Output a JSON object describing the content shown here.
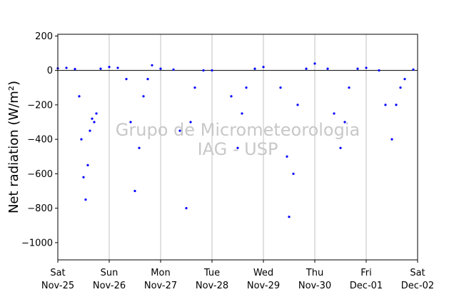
{
  "chart_data": {
    "type": "scatter",
    "ylabel": "Net radiation (W/m²)",
    "watermark": [
      "Grupo de Micrometeorologia",
      "IAG - USP"
    ],
    "ylim": [
      -1100,
      210
    ],
    "yticks": [
      200,
      0,
      -200,
      -400,
      -600,
      -800,
      -1000
    ],
    "xlim": [
      "2023-11-25",
      "2023-12-02"
    ],
    "xticks": [
      {
        "date": "2023-11-25",
        "day": "Sat",
        "label": "Nov-25"
      },
      {
        "date": "2023-11-26",
        "day": "Sun",
        "label": "Nov-26"
      },
      {
        "date": "2023-11-27",
        "day": "Mon",
        "label": "Nov-27"
      },
      {
        "date": "2023-11-28",
        "day": "Tue",
        "label": "Nov-28"
      },
      {
        "date": "2023-11-29",
        "day": "Wed",
        "label": "Nov-29"
      },
      {
        "date": "2023-11-30",
        "day": "Thu",
        "label": "Nov-30"
      },
      {
        "date": "2023-12-01",
        "day": "Fri",
        "label": "Dec-01"
      },
      {
        "date": "2023-12-02",
        "day": "Sat",
        "label": "Dec-02"
      }
    ],
    "grid": "vertical",
    "zero_line": true,
    "series_color": "#0000ff",
    "series": [
      {
        "points": [
          [
            "2023-11-25 00:00",
            12
          ],
          [
            "2023-11-25 04:00",
            15
          ],
          [
            "2023-11-25 08:00",
            8
          ],
          [
            "2023-11-25 10:00",
            -150
          ],
          [
            "2023-11-25 11:00",
            -400
          ],
          [
            "2023-11-25 12:00",
            -620
          ],
          [
            "2023-11-25 13:00",
            -750
          ],
          [
            "2023-11-25 14:00",
            -550
          ],
          [
            "2023-11-25 15:00",
            -350
          ],
          [
            "2023-11-25 16:00",
            -280
          ],
          [
            "2023-11-25 17:00",
            -300
          ],
          [
            "2023-11-25 18:00",
            -250
          ],
          [
            "2023-11-25 20:00",
            10
          ],
          [
            "2023-11-26 00:00",
            20
          ],
          [
            "2023-11-26 04:00",
            15
          ],
          [
            "2023-11-26 08:00",
            -50
          ],
          [
            "2023-11-26 10:00",
            -300
          ],
          [
            "2023-11-26 12:00",
            -700
          ],
          [
            "2023-11-26 14:00",
            -450
          ],
          [
            "2023-11-26 16:00",
            -150
          ],
          [
            "2023-11-26 18:00",
            -50
          ],
          [
            "2023-11-26 20:00",
            30
          ],
          [
            "2023-11-27 00:00",
            10
          ],
          [
            "2023-11-27 06:00",
            5
          ],
          [
            "2023-11-27 09:00",
            -350
          ],
          [
            "2023-11-27 12:00",
            -800
          ],
          [
            "2023-11-27 14:00",
            -300
          ],
          [
            "2023-11-27 16:00",
            -100
          ],
          [
            "2023-11-27 20:00",
            0
          ],
          [
            "2023-11-28 00:00",
            0
          ],
          [
            "2023-11-28 09:00",
            -150
          ],
          [
            "2023-11-28 12:00",
            -450
          ],
          [
            "2023-11-28 14:00",
            -250
          ],
          [
            "2023-11-28 16:00",
            -100
          ],
          [
            "2023-11-28 20:00",
            10
          ],
          [
            "2023-11-29 00:00",
            20
          ],
          [
            "2023-11-29 08:00",
            -100
          ],
          [
            "2023-11-29 11:00",
            -500
          ],
          [
            "2023-11-29 12:00",
            -850
          ],
          [
            "2023-11-29 14:00",
            -600
          ],
          [
            "2023-11-29 16:00",
            -200
          ],
          [
            "2023-11-29 20:00",
            10
          ],
          [
            "2023-11-30 00:00",
            40
          ],
          [
            "2023-11-30 06:00",
            10
          ],
          [
            "2023-11-30 09:00",
            -250
          ],
          [
            "2023-11-30 12:00",
            -450
          ],
          [
            "2023-11-30 14:00",
            -300
          ],
          [
            "2023-11-30 16:00",
            -100
          ],
          [
            "2023-11-30 20:00",
            10
          ],
          [
            "2023-12-01 00:00",
            15
          ],
          [
            "2023-12-01 06:00",
            0
          ],
          [
            "2023-12-01 09:00",
            -200
          ],
          [
            "2023-12-01 12:00",
            -400
          ],
          [
            "2023-12-01 14:00",
            -200
          ],
          [
            "2023-12-01 16:00",
            -100
          ],
          [
            "2023-12-01 18:00",
            -50
          ],
          [
            "2023-12-01 22:00",
            5
          ]
        ]
      }
    ]
  }
}
